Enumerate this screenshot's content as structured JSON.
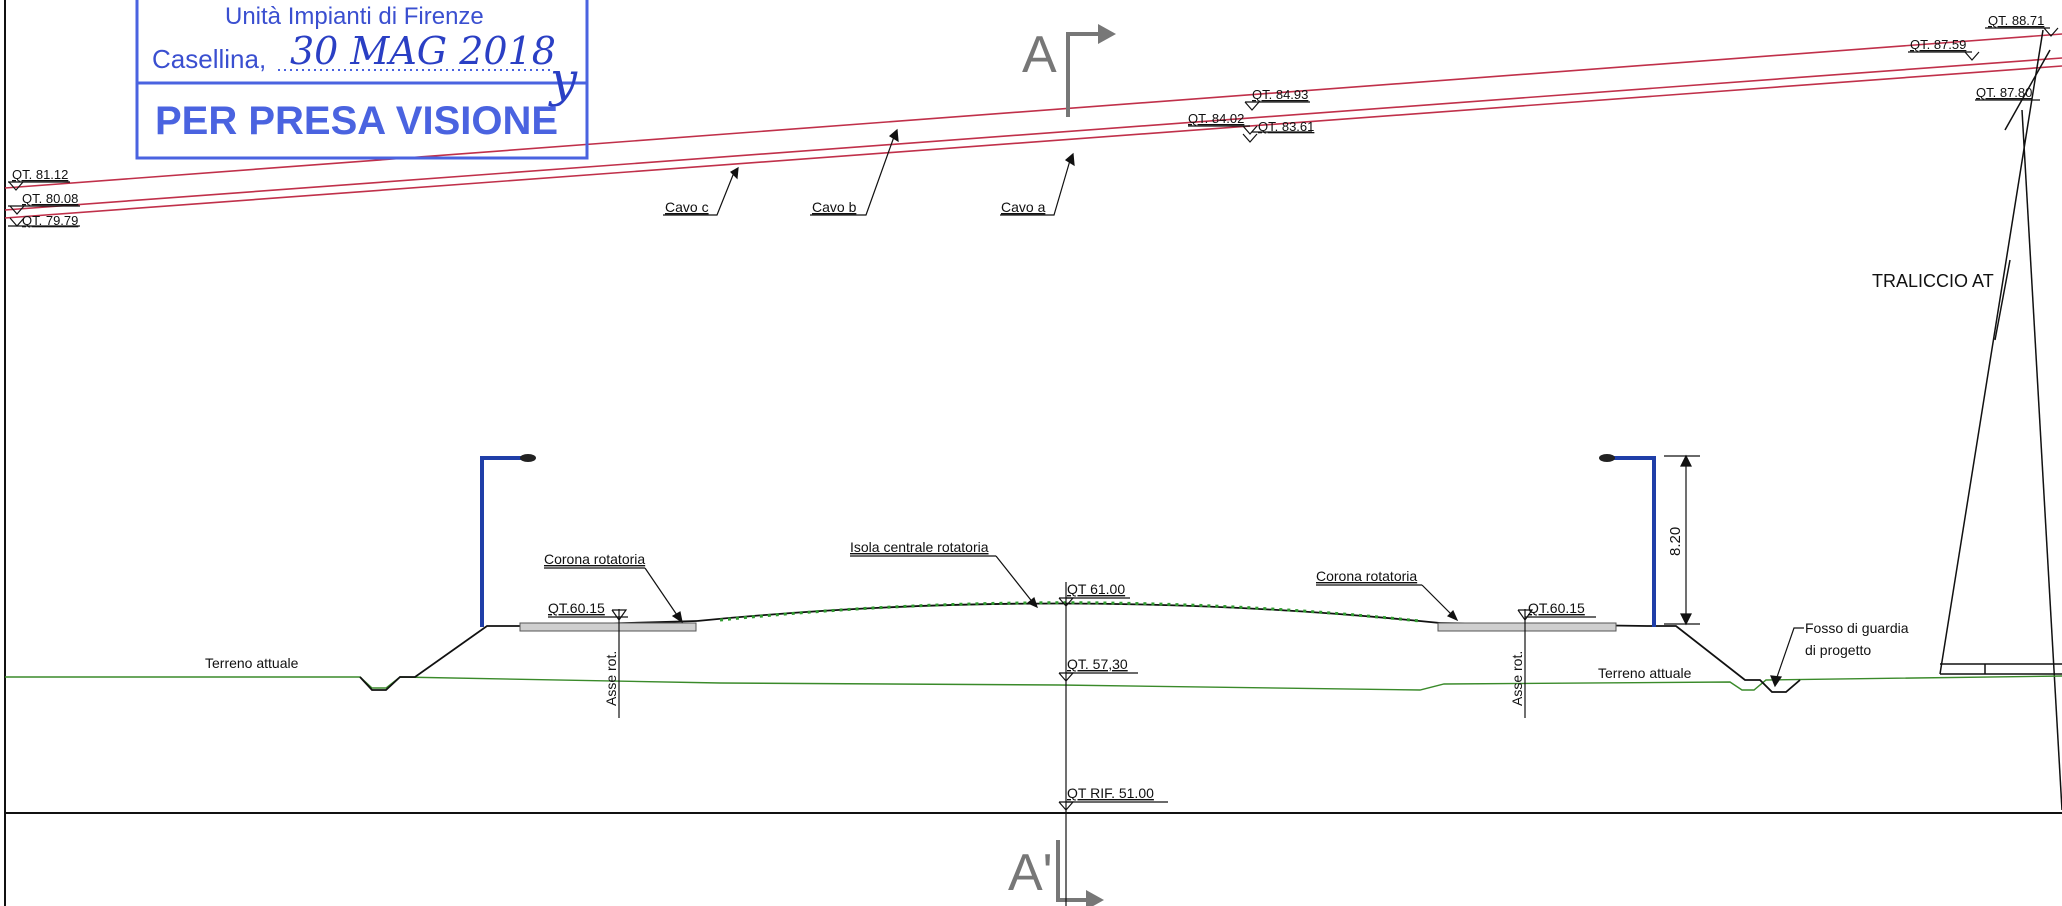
{
  "stamp": {
    "line1": "Unità Impianti di Firenze",
    "line2": "Casellina,",
    "handwritten": "30 MAG 2018",
    "signature": "y",
    "line3": "PER PRESA VISIONE"
  },
  "section_labels": {
    "top": "A",
    "bottom": "A'"
  },
  "cables": {
    "labels": [
      "Cavo c",
      "Cavo b",
      "Cavo a"
    ],
    "quotes_left": [
      "QT. 81.12",
      "QT. 80.08",
      "QT. 79.79"
    ],
    "quotes_mid": [
      "QT. 84.93",
      "QT. 84.02",
      "QT. 83.61"
    ],
    "quotes_right": [
      "QT. 88.71",
      "QT. 87.59",
      "QT. 87.80"
    ]
  },
  "tower_label": "TRALICCIO AT",
  "road": {
    "corona_left": "Corona rotatoria",
    "corona_right": "Corona rotatoria",
    "isola": "Isola centrale rotatoria",
    "qt_left": "QT.60.15",
    "qt_right": "QT.60.15",
    "qt_center": "QT 61.00",
    "qt_ground": "QT. 57,30",
    "qt_ref": "QT RIF. 51.00",
    "asse_left": "Asse rot.",
    "asse_right": "Asse rot.",
    "terreno_left": "Terreno attuale",
    "terreno_right": "Terreno attuale",
    "fosso_line1": "Fosso di guardia",
    "fosso_line2": "di progetto",
    "pole_height": "8.20"
  },
  "colors": {
    "cable": "#c0304a",
    "ground": "#3a8a2a",
    "pole": "#1f3ea8",
    "stamp": "#3a4fd0",
    "line": "#111111"
  }
}
